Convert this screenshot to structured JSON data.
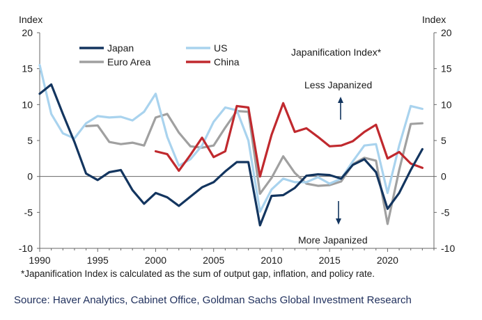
{
  "chart_data": {
    "type": "line",
    "title": "Japanification  Index*",
    "y_label_left": "Index",
    "y_label_right": "Index",
    "xlim": [
      1990,
      2024
    ],
    "ylim": [
      -10,
      20
    ],
    "x_ticks": [
      1990,
      1995,
      2000,
      2005,
      2010,
      2015,
      2020
    ],
    "y_ticks": [
      -10,
      -5,
      0,
      5,
      10,
      15,
      20
    ],
    "grid": false,
    "legend_position": "top-left",
    "annotations": {
      "up": "Less Japanized",
      "down": "More Japanized"
    },
    "series": [
      {
        "name": "Japan",
        "color": "#13355f",
        "x": [
          1990,
          1991,
          1992,
          1993,
          1994,
          1995,
          1996,
          1997,
          1998,
          1999,
          2000,
          2001,
          2002,
          2003,
          2004,
          2005,
          2006,
          2007,
          2008,
          2009,
          2010,
          2011,
          2012,
          2013,
          2014,
          2015,
          2016,
          2017,
          2018,
          2019,
          2020,
          2021,
          2022,
          2023
        ],
        "values": [
          11.5,
          12.8,
          8.7,
          4.8,
          0.4,
          -0.5,
          0.6,
          0.9,
          -1.9,
          -3.8,
          -2.3,
          -2.9,
          -4.1,
          -2.8,
          -1.5,
          -0.8,
          0.7,
          2.0,
          2.0,
          -6.8,
          -2.7,
          -2.6,
          -1.6,
          0.1,
          0.3,
          0.2,
          -0.3,
          1.6,
          2.4,
          0.6,
          -4.5,
          -2.3,
          0.9,
          3.8
        ]
      },
      {
        "name": "US",
        "color": "#a9d3ee",
        "x": [
          1990,
          1991,
          1992,
          1993,
          1994,
          1995,
          1996,
          1997,
          1998,
          1999,
          2000,
          2001,
          2002,
          2003,
          2004,
          2005,
          2006,
          2007,
          2008,
          2009,
          2010,
          2011,
          2012,
          2013,
          2014,
          2015,
          2016,
          2017,
          2018,
          2019,
          2020,
          2021,
          2022,
          2023
        ],
        "values": [
          15.5,
          8.7,
          6.0,
          5.3,
          7.4,
          8.4,
          8.2,
          8.3,
          7.8,
          9.0,
          11.5,
          5.5,
          1.5,
          2.4,
          4.3,
          7.6,
          9.6,
          9.2,
          5.0,
          -4.9,
          -1.8,
          -0.3,
          -0.8,
          -0.8,
          -0.1,
          -1.0,
          -0.3,
          2.1,
          4.3,
          4.5,
          -2.3,
          4.3,
          9.8,
          9.4
        ]
      },
      {
        "name": "Euro Area",
        "color": "#a0a0a0",
        "x": [
          1994,
          1995,
          1996,
          1997,
          1998,
          1999,
          2000,
          2001,
          2002,
          2003,
          2004,
          2005,
          2006,
          2007,
          2008,
          2009,
          2010,
          2011,
          2012,
          2013,
          2014,
          2015,
          2016,
          2017,
          2018,
          2019,
          2020,
          2021,
          2022,
          2023
        ],
        "values": [
          7.0,
          7.1,
          4.8,
          4.5,
          4.7,
          4.3,
          8.2,
          8.7,
          6.1,
          4.2,
          4.0,
          4.3,
          6.8,
          9.1,
          9.0,
          -2.4,
          -0.2,
          2.8,
          0.5,
          -1.0,
          -1.3,
          -1.2,
          -0.7,
          1.7,
          2.6,
          2.2,
          -6.6,
          0.9,
          7.3,
          7.4
        ]
      },
      {
        "name": "China",
        "color": "#c0292e",
        "x": [
          2000,
          2001,
          2002,
          2003,
          2004,
          2005,
          2006,
          2007,
          2008,
          2009,
          2010,
          2011,
          2012,
          2013,
          2014,
          2015,
          2016,
          2017,
          2018,
          2019,
          2020,
          2021,
          2022,
          2023
        ],
        "values": [
          3.5,
          3.1,
          0.8,
          3.0,
          5.4,
          2.7,
          3.5,
          9.8,
          9.6,
          0.0,
          5.8,
          10.2,
          6.2,
          6.7,
          5.5,
          4.2,
          4.3,
          4.9,
          6.2,
          7.2,
          2.5,
          3.4,
          1.8,
          1.2
        ]
      }
    ]
  },
  "footnote": "*Japanification Index is calculated as the sum of output gap, inflation, and policy rate.",
  "source": "Source: Haver Analytics, Cabinet Office, Goldman Sachs Global Investment Research"
}
